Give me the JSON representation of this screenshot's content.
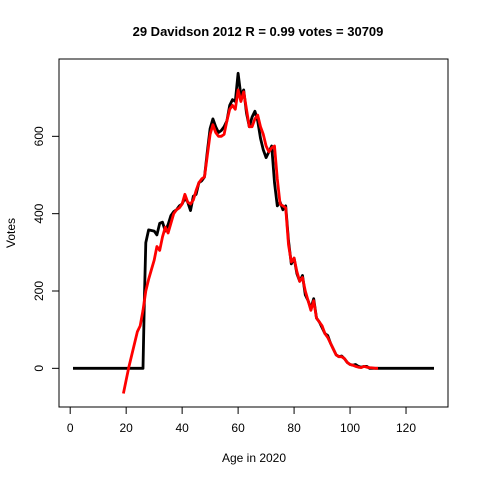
{
  "chart_data": {
    "type": "line",
    "title": "29 Davidson 2012 R = 0.99 votes = 30709",
    "xlabel": "Age in 2020",
    "ylabel": "Votes",
    "xlim": [
      -4,
      135
    ],
    "ylim": [
      -100,
      800
    ],
    "xticks": [
      0,
      20,
      40,
      60,
      80,
      100,
      120
    ],
    "yticks": [
      0,
      200,
      400,
      600
    ],
    "grid": false,
    "legend": "none",
    "series": [
      {
        "color": "#000000",
        "x": [
          1,
          26,
          26.5,
          27,
          28,
          30,
          31,
          32,
          33,
          34,
          35,
          36,
          37,
          38,
          39,
          40,
          41,
          42,
          43,
          44,
          45,
          46,
          47,
          48,
          49,
          50,
          51,
          52,
          53,
          54,
          55,
          56,
          57,
          58,
          59,
          60,
          61,
          62,
          63,
          64,
          65,
          66,
          67,
          68,
          69,
          70,
          71,
          72,
          73,
          74,
          75,
          76,
          77,
          78,
          79,
          80,
          81,
          82,
          83,
          84,
          85,
          86,
          87,
          88,
          89,
          90,
          91,
          92,
          93,
          94,
          95,
          96,
          97,
          98,
          99,
          100,
          101,
          102,
          103,
          104,
          105,
          106,
          107,
          108,
          110,
          130
        ],
        "y": [
          0,
          0,
          180,
          325,
          358,
          355,
          345,
          375,
          378,
          355,
          372,
          395,
          405,
          410,
          420,
          425,
          440,
          430,
          408,
          445,
          450,
          480,
          485,
          495,
          560,
          620,
          645,
          625,
          610,
          615,
          625,
          640,
          680,
          695,
          690,
          763,
          705,
          720,
          660,
          625,
          650,
          665,
          640,
          595,
          565,
          545,
          560,
          575,
          480,
          420,
          430,
          410,
          420,
          330,
          270,
          285,
          245,
          225,
          240,
          190,
          175,
          155,
          180,
          130,
          120,
          105,
          90,
          85,
          65,
          50,
          35,
          30,
          32,
          25,
          15,
          10,
          8,
          10,
          5,
          3,
          5,
          5,
          0,
          0,
          0,
          0
        ]
      },
      {
        "color": "#ff0000",
        "x": [
          19,
          20,
          21,
          22,
          23,
          24,
          25,
          26,
          27,
          28,
          29,
          30,
          31,
          32,
          33,
          34,
          35,
          36,
          37,
          38,
          39,
          40,
          41,
          42,
          43,
          44,
          45,
          46,
          47,
          48,
          49,
          50,
          51,
          52,
          53,
          54,
          55,
          56,
          57,
          58,
          59,
          60,
          61,
          62,
          63,
          64,
          65,
          66,
          67,
          68,
          69,
          70,
          71,
          72,
          73,
          74,
          75,
          76,
          77,
          78,
          79,
          80,
          81,
          82,
          83,
          84,
          85,
          86,
          87,
          88,
          89,
          90,
          91,
          92,
          93,
          94,
          95,
          96,
          97,
          98,
          99,
          100,
          101,
          102,
          103,
          104,
          105,
          106,
          107,
          108,
          109,
          110
        ],
        "y": [
          -65,
          -30,
          5,
          35,
          65,
          95,
          110,
          150,
          200,
          230,
          255,
          280,
          315,
          305,
          340,
          365,
          350,
          375,
          400,
          410,
          415,
          425,
          450,
          430,
          425,
          435,
          460,
          480,
          490,
          495,
          550,
          605,
          630,
          610,
          600,
          600,
          605,
          640,
          670,
          680,
          670,
          720,
          690,
          715,
          670,
          625,
          625,
          645,
          655,
          625,
          605,
          575,
          560,
          570,
          575,
          490,
          425,
          420,
          415,
          320,
          275,
          285,
          250,
          225,
          235,
          200,
          175,
          150,
          175,
          130,
          120,
          110,
          90,
          80,
          65,
          50,
          35,
          30,
          30,
          25,
          15,
          10,
          8,
          5,
          3,
          2,
          5,
          3,
          2,
          1,
          0,
          0
        ]
      }
    ]
  }
}
